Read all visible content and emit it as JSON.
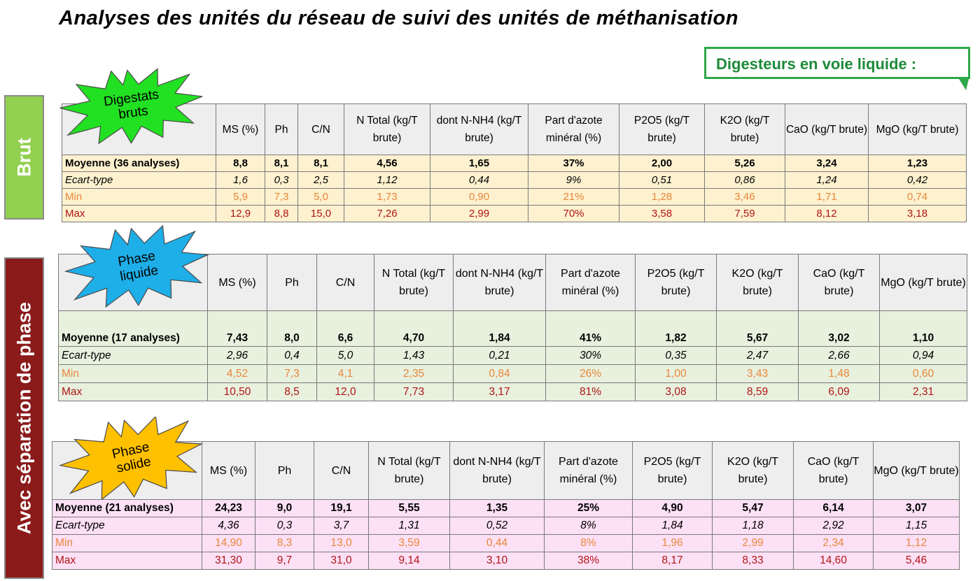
{
  "title": "Analyses des unités du réseau de suivi des unités de méthanisation",
  "callout": "Digesteurs en voie liquide :",
  "side_labels": {
    "brut": "Brut",
    "separation": "Avec séparation de phase"
  },
  "colors": {
    "brut_side": "#92d050",
    "sep_side": "#8b1a1a",
    "callout_border": "#2ea84a",
    "min_text": "#e8873a",
    "max_text": "#b01515",
    "brut_rows": "#fdf1cf",
    "liquid_rows": "#e8f0de",
    "solid_rows": "#fce0f5",
    "burst_brut": "#22e022",
    "burst_liquid": "#1eaee8",
    "burst_solid": "#ffc000"
  },
  "columns": {
    "brut": [
      "MS (%)",
      "Ph",
      "C/N",
      "N Total (kg/T brute)",
      "dont N-NH4 (kg/T brute)",
      "Part d'azote minéral (%)",
      "P2O5 (kg/T brute)",
      "K2O (kg/T brute)",
      "CaO (kg/T brute)",
      "MgO (kg/T brute)"
    ],
    "phase": [
      "MS (%)",
      "Ph",
      "C/N",
      "N Total (kg/T brute)",
      "dont N-NH4 (kg/T brute)",
      "Part d'azote minéral (%)",
      "P2O5 (kg/T brute)",
      "K2O (kg/T brute)",
      "CaO (kg/T brute)",
      "MgO (kg/T brute)"
    ]
  },
  "tables": [
    {
      "badge": "Digestats\nbruts",
      "rows": [
        {
          "label": "Moyenne (36 analyses)",
          "values": [
            "8,8",
            "8,1",
            "8,1",
            "4,56",
            "1,65",
            "37%",
            "2,00",
            "5,26",
            "3,24",
            "1,23"
          ]
        },
        {
          "label": "Ecart-type",
          "values": [
            "1,6",
            "0,3",
            "2,5",
            "1,12",
            "0,44",
            "9%",
            "0,51",
            "0,86",
            "1,24",
            "0,42"
          ]
        },
        {
          "label": "Min",
          "values": [
            "5,9",
            "7,3",
            "5,0",
            "1,73",
            "0,90",
            "21%",
            "1,28",
            "3,46",
            "1,71",
            "0,74"
          ]
        },
        {
          "label": "Max",
          "values": [
            "12,9",
            "8,8",
            "15,0",
            "7,26",
            "2,99",
            "70%",
            "3,58",
            "7,59",
            "8,12",
            "3,18"
          ]
        }
      ]
    },
    {
      "badge": "Phase\nliquide",
      "rows": [
        {
          "label": "Moyenne (17 analyses)",
          "values": [
            "7,43",
            "8,0",
            "6,6",
            "4,70",
            "1,84",
            "41%",
            "1,82",
            "5,67",
            "3,02",
            "1,10"
          ]
        },
        {
          "label": "Ecart-type",
          "values": [
            "2,96",
            "0,4",
            "5,0",
            "1,43",
            "0,21",
            "30%",
            "0,35",
            "2,47",
            "2,66",
            "0,94"
          ]
        },
        {
          "label": "Min",
          "values": [
            "4,52",
            "7,3",
            "4,1",
            "2,35",
            "0,84",
            "26%",
            "1,00",
            "3,43",
            "1,48",
            "0,60"
          ]
        },
        {
          "label": "Max",
          "values": [
            "10,50",
            "8,5",
            "12,0",
            "7,73",
            "3,17",
            "81%",
            "3,08",
            "8,59",
            "6,09",
            "2,31"
          ]
        }
      ]
    },
    {
      "badge": "Phase\nsolide",
      "rows": [
        {
          "label": "Moyenne (21 analyses)",
          "values": [
            "24,23",
            "9,0",
            "19,1",
            "5,55",
            "1,35",
            "25%",
            "4,90",
            "5,47",
            "6,14",
            "3,07"
          ]
        },
        {
          "label": "Ecart-type",
          "values": [
            "4,36",
            "0,3",
            "3,7",
            "1,31",
            "0,52",
            "8%",
            "1,84",
            "1,18",
            "2,92",
            "1,15"
          ]
        },
        {
          "label": "Min",
          "values": [
            "14,90",
            "8,3",
            "13,0",
            "3,59",
            "0,44",
            "8%",
            "1,96",
            "2,99",
            "2,34",
            "1,12"
          ]
        },
        {
          "label": "Max",
          "values": [
            "31,30",
            "9,7",
            "31,0",
            "9,14",
            "3,10",
            "38%",
            "8,17",
            "8,33",
            "14,60",
            "5,46"
          ]
        }
      ]
    }
  ]
}
